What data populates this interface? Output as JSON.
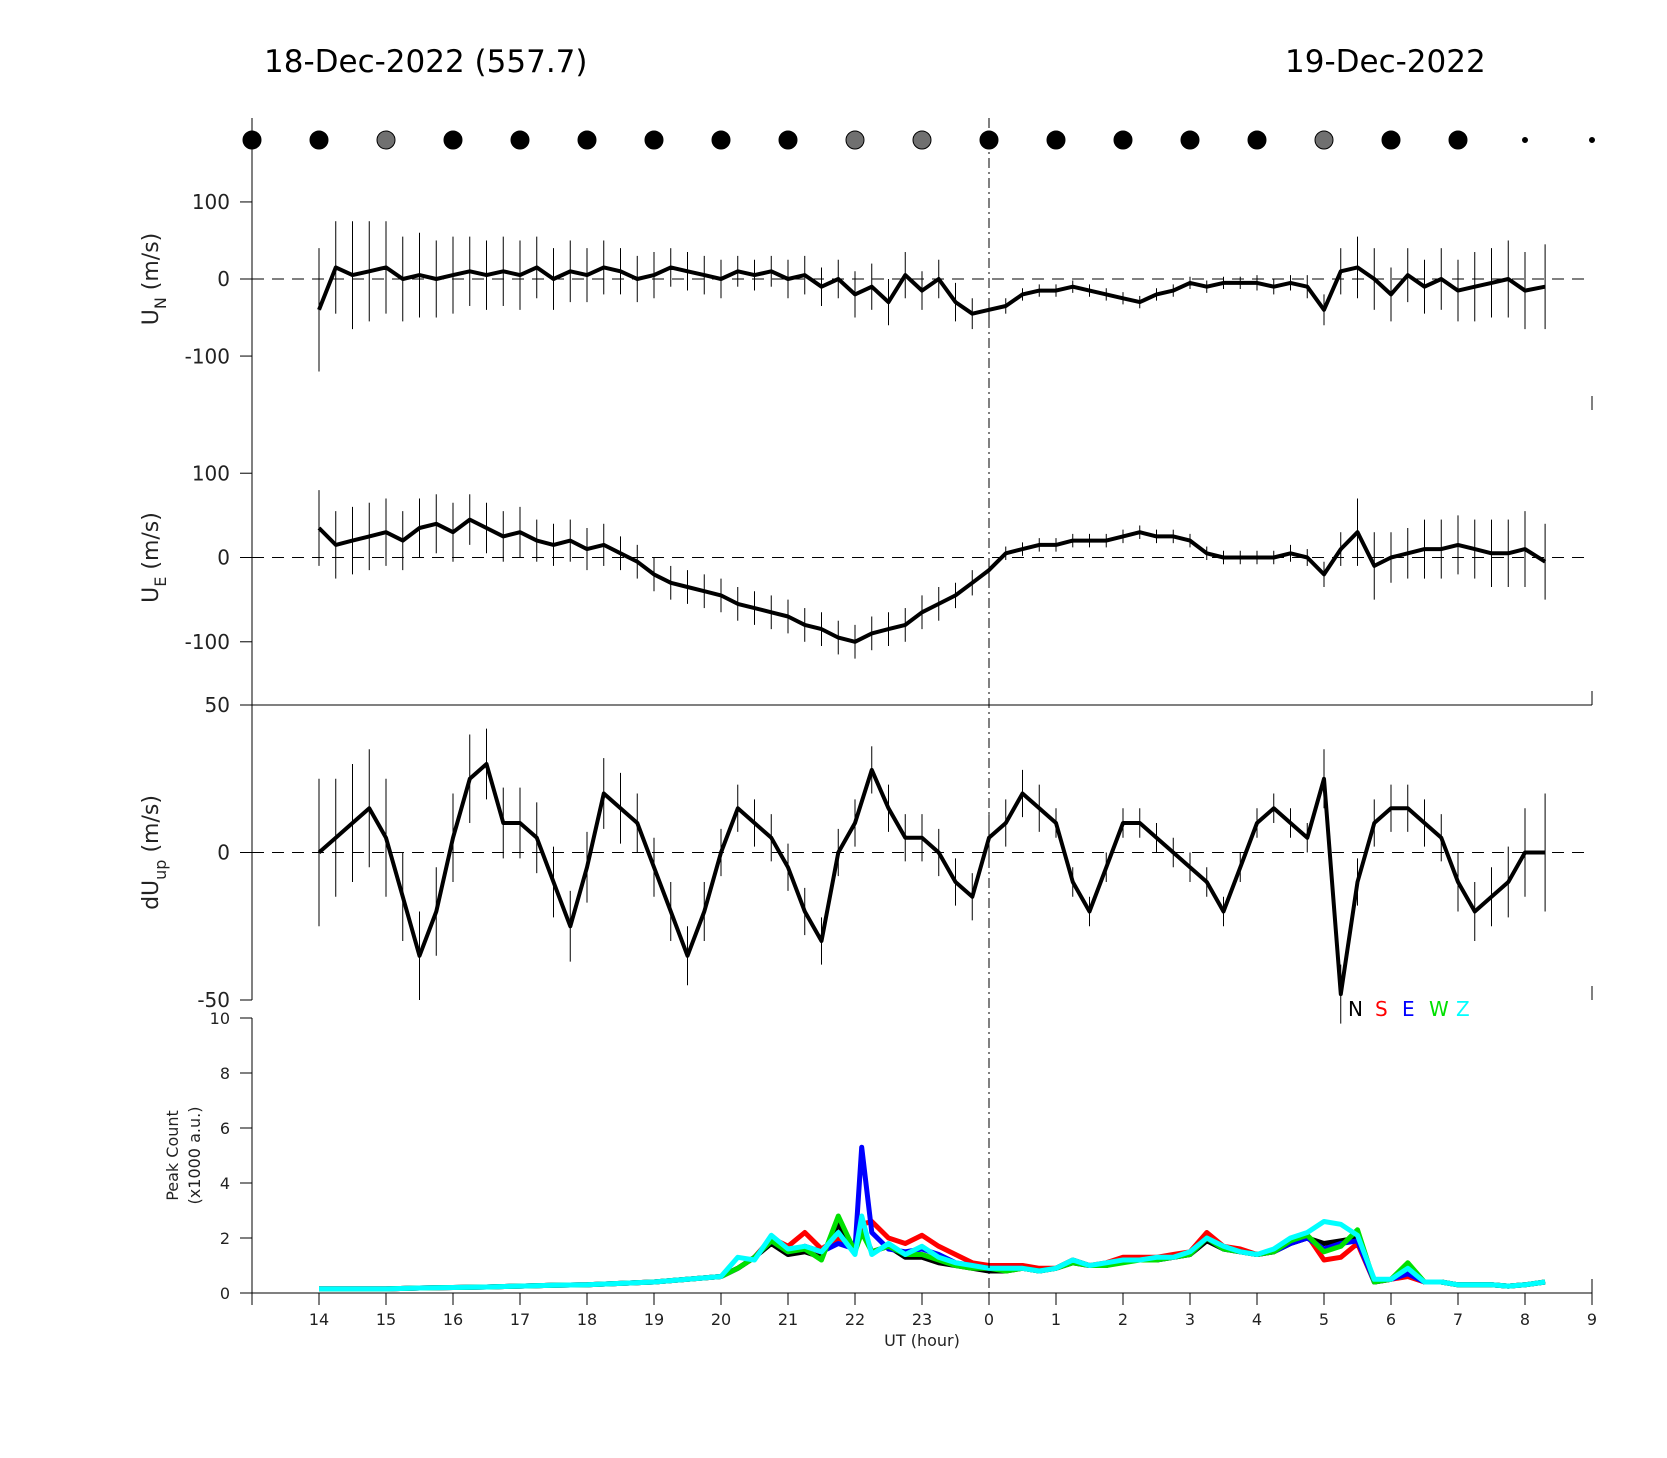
{
  "header": {
    "left_title": "18-Dec-2022 (557.7)",
    "right_title": "19-Dec-2022"
  },
  "colors": {
    "N": "#000000",
    "S": "#ff0000",
    "E": "#0000ff",
    "W": "#00e000",
    "Z": "#00ffff",
    "sky_clear": "#000000",
    "sky_partial": "#707070"
  },
  "chart_data": [
    {
      "panel": "sky-condition",
      "type": "scatter",
      "x": [
        13,
        14,
        15,
        16,
        17,
        18,
        19,
        20,
        21,
        22,
        23,
        24,
        25,
        26,
        27,
        28,
        29,
        30,
        31,
        32,
        33
      ],
      "condition": [
        "clear",
        "clear",
        "partial",
        "clear",
        "clear",
        "clear",
        "clear",
        "clear",
        "clear",
        "partial",
        "partial",
        "clear",
        "clear",
        "clear",
        "clear",
        "clear",
        "partial",
        "clear",
        "clear",
        "small",
        "small"
      ]
    },
    {
      "panel": "UN",
      "type": "line",
      "ylabel_main": "U",
      "ylabel_sub": "N",
      "ylabel_unit": "(m/s)",
      "ylim": [
        -170,
        170
      ],
      "yticks": [
        -100,
        0,
        100
      ],
      "x": [
        14.0,
        14.25,
        14.5,
        14.75,
        15.0,
        15.25,
        15.5,
        15.75,
        16.0,
        16.25,
        16.5,
        16.75,
        17.0,
        17.25,
        17.5,
        17.75,
        18.0,
        18.25,
        18.5,
        18.75,
        19.0,
        19.25,
        19.5,
        19.75,
        20.0,
        20.25,
        20.5,
        20.75,
        21.0,
        21.25,
        21.5,
        21.75,
        22.0,
        22.25,
        22.5,
        22.75,
        23.0,
        23.25,
        23.5,
        23.75,
        24.0,
        24.25,
        24.5,
        24.75,
        25.0,
        25.25,
        25.5,
        25.75,
        26.0,
        26.25,
        26.5,
        26.75,
        27.0,
        27.25,
        27.5,
        27.75,
        28.0,
        28.25,
        28.5,
        28.75,
        29.0,
        29.25,
        29.5,
        29.75,
        30.0,
        30.25,
        30.5,
        30.75,
        31.0,
        31.25,
        31.5,
        31.75,
        32.0,
        32.3
      ],
      "y": [
        -40,
        15,
        5,
        10,
        15,
        0,
        5,
        0,
        5,
        10,
        5,
        10,
        5,
        15,
        0,
        10,
        5,
        15,
        10,
        0,
        5,
        15,
        10,
        5,
        0,
        10,
        5,
        10,
        0,
        5,
        -10,
        0,
        -20,
        -10,
        -30,
        5,
        -15,
        0,
        -30,
        -45,
        -40,
        -35,
        -20,
        -15,
        -15,
        -10,
        -15,
        -20,
        -25,
        -30,
        -20,
        -15,
        -5,
        -10,
        -5,
        -5,
        -5,
        -10,
        -5,
        -10,
        -40,
        10,
        15,
        0,
        -20,
        5,
        -10,
        0,
        -15,
        -10,
        -5,
        0,
        -15,
        -10
      ],
      "err": [
        80,
        60,
        70,
        65,
        60,
        55,
        55,
        50,
        50,
        45,
        45,
        45,
        45,
        40,
        40,
        40,
        35,
        35,
        30,
        30,
        30,
        25,
        25,
        25,
        25,
        20,
        20,
        20,
        25,
        25,
        25,
        25,
        30,
        30,
        30,
        30,
        25,
        25,
        25,
        20,
        15,
        10,
        8,
        8,
        8,
        8,
        8,
        8,
        8,
        8,
        8,
        8,
        8,
        8,
        8,
        8,
        10,
        10,
        10,
        15,
        20,
        30,
        40,
        40,
        35,
        35,
        35,
        40,
        40,
        45,
        45,
        50,
        50,
        55
      ],
      "ref_line": 0
    },
    {
      "panel": "UE",
      "type": "line",
      "ylabel_main": "U",
      "ylabel_sub": "E",
      "ylabel_unit": "(m/s)",
      "ylim": [
        -175,
        175
      ],
      "yticks": [
        -100,
        0,
        100
      ],
      "x": [
        14.0,
        14.25,
        14.5,
        14.75,
        15.0,
        15.25,
        15.5,
        15.75,
        16.0,
        16.25,
        16.5,
        16.75,
        17.0,
        17.25,
        17.5,
        17.75,
        18.0,
        18.25,
        18.5,
        18.75,
        19.0,
        19.25,
        19.5,
        19.75,
        20.0,
        20.25,
        20.5,
        20.75,
        21.0,
        21.25,
        21.5,
        21.75,
        22.0,
        22.25,
        22.5,
        22.75,
        23.0,
        23.25,
        23.5,
        23.75,
        24.0,
        24.25,
        24.5,
        24.75,
        25.0,
        25.25,
        25.5,
        25.75,
        26.0,
        26.25,
        26.5,
        26.75,
        27.0,
        27.25,
        27.5,
        27.75,
        28.0,
        28.25,
        28.5,
        28.75,
        29.0,
        29.25,
        29.5,
        29.75,
        30.0,
        30.25,
        30.5,
        30.75,
        31.0,
        31.25,
        31.5,
        31.75,
        32.0,
        32.3
      ],
      "y": [
        35,
        15,
        20,
        25,
        30,
        20,
        35,
        40,
        30,
        45,
        35,
        25,
        30,
        20,
        15,
        20,
        10,
        15,
        5,
        -5,
        -20,
        -30,
        -35,
        -40,
        -45,
        -55,
        -60,
        -65,
        -70,
        -80,
        -85,
        -95,
        -100,
        -90,
        -85,
        -80,
        -65,
        -55,
        -45,
        -30,
        -15,
        5,
        10,
        15,
        15,
        20,
        20,
        20,
        25,
        30,
        25,
        25,
        20,
        5,
        0,
        0,
        0,
        0,
        5,
        0,
        -20,
        10,
        30,
        -10,
        0,
        5,
        10,
        10,
        15,
        10,
        5,
        5,
        10,
        -5
      ],
      "err": [
        45,
        40,
        40,
        40,
        40,
        35,
        35,
        35,
        35,
        30,
        30,
        30,
        30,
        25,
        25,
        25,
        25,
        25,
        20,
        20,
        20,
        20,
        20,
        20,
        20,
        20,
        20,
        20,
        20,
        20,
        20,
        20,
        20,
        20,
        20,
        20,
        20,
        20,
        15,
        15,
        10,
        8,
        8,
        8,
        8,
        8,
        8,
        8,
        8,
        8,
        8,
        8,
        8,
        8,
        8,
        8,
        8,
        8,
        10,
        10,
        15,
        20,
        40,
        40,
        30,
        30,
        35,
        35,
        35,
        35,
        40,
        40,
        45,
        45
      ],
      "ref_line": 0
    },
    {
      "panel": "dUup",
      "type": "line",
      "ylabel_main": "dU",
      "ylabel_sub": "up",
      "ylabel_unit": "(m/s)",
      "ylim": [
        -50,
        50
      ],
      "yticks": [
        -50,
        0,
        50
      ],
      "x": [
        14.0,
        14.25,
        14.5,
        14.75,
        15.0,
        15.25,
        15.5,
        15.75,
        16.0,
        16.25,
        16.5,
        16.75,
        17.0,
        17.25,
        17.5,
        17.75,
        18.0,
        18.25,
        18.5,
        18.75,
        19.0,
        19.25,
        19.5,
        19.75,
        20.0,
        20.25,
        20.5,
        20.75,
        21.0,
        21.25,
        21.5,
        21.75,
        22.0,
        22.25,
        22.5,
        22.75,
        23.0,
        23.25,
        23.5,
        23.75,
        24.0,
        24.25,
        24.5,
        24.75,
        25.0,
        25.25,
        25.5,
        25.75,
        26.0,
        26.25,
        26.5,
        26.75,
        27.0,
        27.25,
        27.5,
        27.75,
        28.0,
        28.25,
        28.5,
        28.75,
        29.0,
        29.25,
        29.5,
        29.75,
        30.0,
        30.25,
        30.5,
        30.75,
        31.0,
        31.25,
        31.5,
        31.75,
        32.0,
        32.3
      ],
      "y": [
        0,
        5,
        10,
        15,
        5,
        -15,
        -35,
        -20,
        5,
        25,
        30,
        10,
        10,
        5,
        -10,
        -25,
        -5,
        20,
        15,
        10,
        -5,
        -20,
        -35,
        -20,
        0,
        15,
        10,
        5,
        -5,
        -20,
        -30,
        0,
        10,
        28,
        15,
        5,
        5,
        0,
        -10,
        -15,
        5,
        10,
        20,
        15,
        10,
        -10,
        -20,
        -5,
        10,
        10,
        5,
        0,
        -5,
        -10,
        -20,
        -5,
        10,
        15,
        10,
        5,
        25,
        -48,
        -10,
        10,
        15,
        15,
        10,
        5,
        -10,
        -20,
        -15,
        -10,
        0,
        0
      ],
      "err": [
        25,
        20,
        20,
        20,
        20,
        15,
        15,
        15,
        15,
        15,
        12,
        12,
        12,
        12,
        12,
        12,
        12,
        12,
        12,
        10,
        10,
        10,
        10,
        10,
        8,
        8,
        8,
        8,
        8,
        8,
        8,
        8,
        8,
        8,
        8,
        8,
        8,
        8,
        8,
        8,
        8,
        8,
        8,
        8,
        5,
        5,
        5,
        5,
        5,
        5,
        5,
        5,
        5,
        5,
        5,
        5,
        5,
        5,
        5,
        5,
        10,
        10,
        8,
        8,
        8,
        8,
        8,
        8,
        10,
        10,
        10,
        12,
        15,
        20
      ],
      "ref_line": 0
    },
    {
      "panel": "PeakCount",
      "type": "line",
      "ylabel_line1": "Peak Count",
      "ylabel_line2": "(x1000 a.u.)",
      "ylim": [
        0,
        10
      ],
      "yticks": [
        0,
        2,
        4,
        6,
        8,
        10
      ],
      "xlabel": "UT (hour)",
      "xlim": [
        13,
        33
      ],
      "xtick_labels": [
        "14",
        "15",
        "16",
        "17",
        "18",
        "19",
        "20",
        "21",
        "22",
        "23",
        "0",
        "1",
        "2",
        "3",
        "4",
        "5",
        "6",
        "7",
        "8",
        "9"
      ],
      "x": [
        14.0,
        14.5,
        15.0,
        15.5,
        16.0,
        16.5,
        17.0,
        17.5,
        18.0,
        18.5,
        19.0,
        19.5,
        20.0,
        20.25,
        20.5,
        20.75,
        21.0,
        21.25,
        21.5,
        21.75,
        22.0,
        22.1,
        22.25,
        22.5,
        22.75,
        23.0,
        23.25,
        23.5,
        23.75,
        24.0,
        24.25,
        24.5,
        24.75,
        25.0,
        25.25,
        25.5,
        25.75,
        26.0,
        26.25,
        26.5,
        26.75,
        27.0,
        27.25,
        27.5,
        27.75,
        28.0,
        28.25,
        28.5,
        28.75,
        29.0,
        29.25,
        29.5,
        29.75,
        30.0,
        30.25,
        30.5,
        30.75,
        31.0,
        31.25,
        31.5,
        31.75,
        32.0,
        32.3
      ],
      "series": [
        {
          "name": "N",
          "values": [
            0.15,
            0.15,
            0.15,
            0.18,
            0.2,
            0.22,
            0.25,
            0.28,
            0.3,
            0.35,
            0.4,
            0.5,
            0.6,
            0.9,
            1.3,
            1.8,
            1.4,
            1.5,
            1.3,
            2.5,
            1.6,
            2.4,
            1.5,
            1.7,
            1.3,
            1.3,
            1.1,
            1.0,
            0.9,
            0.8,
            0.8,
            0.9,
            0.8,
            0.9,
            1.2,
            1.0,
            1.0,
            1.2,
            1.2,
            1.2,
            1.3,
            1.4,
            1.9,
            1.6,
            1.5,
            1.4,
            1.5,
            1.8,
            2.0,
            1.8,
            1.9,
            2.0,
            0.4,
            0.5,
            0.8,
            0.4,
            0.4,
            0.3,
            0.3,
            0.3,
            0.25,
            0.3,
            0.4
          ]
        },
        {
          "name": "S",
          "values": [
            0.15,
            0.15,
            0.15,
            0.18,
            0.2,
            0.22,
            0.25,
            0.28,
            0.3,
            0.35,
            0.4,
            0.5,
            0.6,
            0.9,
            1.3,
            2.0,
            1.7,
            2.2,
            1.6,
            2.0,
            1.7,
            2.5,
            2.6,
            2.0,
            1.8,
            2.1,
            1.7,
            1.4,
            1.1,
            1.0,
            1.0,
            1.0,
            0.9,
            0.9,
            1.1,
            1.0,
            1.1,
            1.3,
            1.3,
            1.3,
            1.4,
            1.5,
            2.2,
            1.7,
            1.6,
            1.4,
            1.5,
            1.9,
            2.1,
            1.2,
            1.3,
            1.8,
            0.4,
            0.5,
            0.6,
            0.4,
            0.4,
            0.3,
            0.3,
            0.3,
            0.25,
            0.3,
            0.4
          ]
        },
        {
          "name": "E",
          "values": [
            0.15,
            0.15,
            0.15,
            0.18,
            0.2,
            0.22,
            0.25,
            0.28,
            0.3,
            0.35,
            0.4,
            0.5,
            0.6,
            0.9,
            1.3,
            1.9,
            1.5,
            1.7,
            1.5,
            1.8,
            1.6,
            5.3,
            2.2,
            1.6,
            1.5,
            1.6,
            1.4,
            1.1,
            1.0,
            0.9,
            0.9,
            0.9,
            0.8,
            0.9,
            1.1,
            1.0,
            1.0,
            1.2,
            1.2,
            1.2,
            1.3,
            1.4,
            2.0,
            1.6,
            1.5,
            1.4,
            1.5,
            1.8,
            2.0,
            1.6,
            1.8,
            1.9,
            0.4,
            0.5,
            0.7,
            0.4,
            0.4,
            0.3,
            0.3,
            0.3,
            0.25,
            0.3,
            0.4
          ]
        },
        {
          "name": "W",
          "values": [
            0.15,
            0.15,
            0.15,
            0.18,
            0.2,
            0.22,
            0.25,
            0.28,
            0.3,
            0.35,
            0.4,
            0.5,
            0.6,
            0.9,
            1.3,
            1.9,
            1.5,
            1.6,
            1.2,
            2.8,
            1.5,
            2.2,
            1.5,
            1.7,
            1.4,
            1.4,
            1.2,
            1.0,
            0.9,
            0.9,
            0.8,
            0.9,
            0.8,
            0.9,
            1.1,
            1.0,
            1.0,
            1.1,
            1.2,
            1.2,
            1.3,
            1.4,
            2.0,
            1.6,
            1.5,
            1.4,
            1.5,
            1.9,
            2.1,
            1.5,
            1.7,
            2.3,
            0.4,
            0.5,
            1.1,
            0.4,
            0.4,
            0.3,
            0.3,
            0.3,
            0.25,
            0.3,
            0.4
          ]
        },
        {
          "name": "Z",
          "values": [
            0.15,
            0.15,
            0.15,
            0.18,
            0.2,
            0.22,
            0.25,
            0.28,
            0.3,
            0.35,
            0.4,
            0.5,
            0.6,
            1.3,
            1.2,
            2.1,
            1.6,
            1.7,
            1.5,
            2.2,
            1.4,
            2.8,
            1.4,
            1.8,
            1.4,
            1.7,
            1.3,
            1.1,
            1.0,
            0.9,
            0.9,
            0.9,
            0.8,
            0.9,
            1.2,
            1.0,
            1.1,
            1.2,
            1.2,
            1.3,
            1.3,
            1.5,
            2.0,
            1.7,
            1.5,
            1.4,
            1.6,
            2.0,
            2.2,
            2.6,
            2.5,
            2.1,
            0.5,
            0.5,
            0.9,
            0.4,
            0.4,
            0.3,
            0.3,
            0.3,
            0.25,
            0.3,
            0.4
          ]
        }
      ],
      "legend": [
        "N",
        "S",
        "E",
        "W",
        "Z"
      ],
      "legend_placement": "top-right"
    }
  ]
}
